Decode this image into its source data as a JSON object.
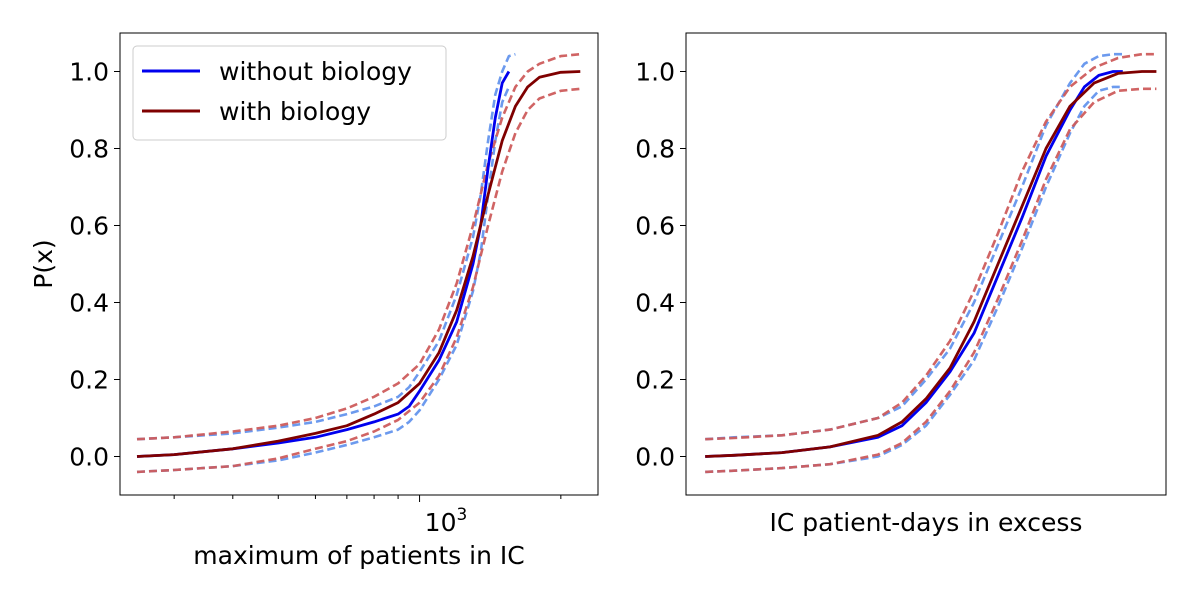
{
  "colors": {
    "without_biology": "#0000ee",
    "with_biology": "#7f0000",
    "ci_without": "#6495ed",
    "ci_with": "#cd5c5c"
  },
  "chart_data": [
    {
      "type": "line",
      "xlabel": "maximum of patients in IC",
      "ylabel": "P(x)",
      "xscale": "log",
      "xlim": [
        230,
        2400
      ],
      "ylim": [
        -0.1,
        1.1
      ],
      "yticks": [
        0.0,
        0.2,
        0.4,
        0.6,
        0.8,
        1.0
      ],
      "ytick_labels": [
        "0.0",
        "0.2",
        "0.4",
        "0.6",
        "0.8",
        "1.0"
      ],
      "xtick_major": 1000,
      "xtick_label_base": "10",
      "xtick_label_exp": "3",
      "grid": false,
      "legend": {
        "placement": "upper-left",
        "entries": [
          "without biology",
          "with biology"
        ]
      },
      "series": [
        {
          "name": "without biology",
          "style": "solid",
          "x": [
            250,
            300,
            400,
            500,
            600,
            700,
            800,
            900,
            950,
            1000,
            1100,
            1200,
            1300,
            1350,
            1400,
            1450,
            1500,
            1550
          ],
          "y": [
            0.0,
            0.005,
            0.02,
            0.035,
            0.05,
            0.07,
            0.09,
            0.11,
            0.13,
            0.17,
            0.25,
            0.35,
            0.5,
            0.6,
            0.75,
            0.88,
            0.97,
            1.0
          ]
        },
        {
          "name": "without biology (upper bound)",
          "style": "dashed",
          "x": [
            250,
            300,
            400,
            500,
            600,
            700,
            800,
            900,
            950,
            1000,
            1100,
            1200,
            1300,
            1350,
            1400,
            1450,
            1500,
            1550,
            1600
          ],
          "y": [
            0.045,
            0.05,
            0.06,
            0.075,
            0.09,
            0.11,
            0.13,
            0.155,
            0.18,
            0.22,
            0.3,
            0.42,
            0.57,
            0.68,
            0.82,
            0.94,
            1.0,
            1.04,
            1.045
          ]
        },
        {
          "name": "without biology (lower bound)",
          "style": "dashed",
          "x": [
            250,
            300,
            400,
            500,
            600,
            700,
            800,
            900,
            950,
            1000,
            1100,
            1200,
            1300,
            1350,
            1400,
            1450,
            1500,
            1550
          ],
          "y": [
            -0.04,
            -0.035,
            -0.025,
            -0.01,
            0.01,
            0.03,
            0.05,
            0.07,
            0.09,
            0.12,
            0.2,
            0.29,
            0.43,
            0.53,
            0.68,
            0.82,
            0.92,
            0.96
          ]
        },
        {
          "name": "with biology",
          "style": "solid",
          "x": [
            250,
            300,
            400,
            500,
            600,
            700,
            800,
            900,
            1000,
            1100,
            1200,
            1300,
            1400,
            1500,
            1600,
            1700,
            1800,
            2000,
            2200
          ],
          "y": [
            0.0,
            0.005,
            0.02,
            0.04,
            0.06,
            0.08,
            0.11,
            0.14,
            0.19,
            0.27,
            0.38,
            0.52,
            0.68,
            0.82,
            0.91,
            0.96,
            0.985,
            0.998,
            1.0
          ]
        },
        {
          "name": "with biology (upper bound)",
          "style": "dashed",
          "x": [
            250,
            300,
            400,
            500,
            600,
            700,
            800,
            900,
            1000,
            1100,
            1200,
            1300,
            1400,
            1500,
            1600,
            1700,
            1800,
            2000,
            2200
          ],
          "y": [
            0.045,
            0.05,
            0.065,
            0.08,
            0.1,
            0.125,
            0.155,
            0.19,
            0.24,
            0.33,
            0.45,
            0.6,
            0.76,
            0.88,
            0.96,
            1.0,
            1.02,
            1.04,
            1.045
          ]
        },
        {
          "name": "with biology (lower bound)",
          "style": "dashed",
          "x": [
            250,
            300,
            400,
            500,
            600,
            700,
            800,
            900,
            1000,
            1100,
            1200,
            1300,
            1400,
            1500,
            1600,
            1700,
            1800,
            2000,
            2200
          ],
          "y": [
            -0.04,
            -0.035,
            -0.025,
            -0.005,
            0.02,
            0.04,
            0.065,
            0.095,
            0.14,
            0.21,
            0.31,
            0.44,
            0.6,
            0.74,
            0.84,
            0.9,
            0.93,
            0.95,
            0.955
          ]
        }
      ]
    },
    {
      "type": "line",
      "xlabel": "IC patient-days in excess",
      "ylabel": "",
      "xlim": [
        0,
        10
      ],
      "ylim": [
        -0.1,
        1.1
      ],
      "yticks": [
        0.0,
        0.2,
        0.4,
        0.6,
        0.8,
        1.0
      ],
      "ytick_labels": [
        "0.0",
        "0.2",
        "0.4",
        "0.6",
        "0.8",
        "1.0"
      ],
      "grid": false,
      "series": [
        {
          "name": "without biology",
          "style": "solid",
          "x": [
            0.4,
            1,
            2,
            3,
            4,
            4.5,
            5,
            5.5,
            6,
            6.5,
            7,
            7.5,
            8,
            8.3,
            8.6,
            8.9,
            9.1
          ],
          "y": [
            0.0,
            0.003,
            0.01,
            0.025,
            0.05,
            0.08,
            0.14,
            0.22,
            0.32,
            0.47,
            0.62,
            0.78,
            0.9,
            0.96,
            0.99,
            1.0,
            1.0
          ]
        },
        {
          "name": "without biology (upper bound)",
          "style": "dashed",
          "x": [
            0.4,
            1,
            2,
            3,
            4,
            4.5,
            5,
            5.5,
            6,
            6.5,
            7,
            7.5,
            8,
            8.3,
            8.6,
            8.9,
            9.1
          ],
          "y": [
            0.045,
            0.05,
            0.055,
            0.07,
            0.1,
            0.13,
            0.2,
            0.28,
            0.4,
            0.55,
            0.7,
            0.86,
            0.97,
            1.02,
            1.04,
            1.045,
            1.045
          ]
        },
        {
          "name": "without biology (lower bound)",
          "style": "dashed",
          "x": [
            0.4,
            1,
            2,
            3,
            4,
            4.5,
            5,
            5.5,
            6,
            6.5,
            7,
            7.5,
            8,
            8.3,
            8.6,
            8.9,
            9.1
          ],
          "y": [
            -0.04,
            -0.037,
            -0.03,
            -0.02,
            0.0,
            0.03,
            0.08,
            0.16,
            0.25,
            0.39,
            0.54,
            0.7,
            0.84,
            0.91,
            0.95,
            0.96,
            0.96
          ]
        },
        {
          "name": "with biology",
          "style": "solid",
          "x": [
            0.4,
            1,
            2,
            3,
            4,
            4.5,
            5,
            5.5,
            6,
            6.5,
            7,
            7.5,
            8,
            8.5,
            9,
            9.5,
            9.8
          ],
          "y": [
            0.0,
            0.003,
            0.01,
            0.025,
            0.055,
            0.09,
            0.15,
            0.23,
            0.35,
            0.5,
            0.65,
            0.8,
            0.91,
            0.97,
            0.995,
            1.0,
            1.0
          ]
        },
        {
          "name": "with biology (upper bound)",
          "style": "dashed",
          "x": [
            0.4,
            1,
            2,
            3,
            4,
            4.5,
            5,
            5.5,
            6,
            6.5,
            7,
            7.5,
            8,
            8.5,
            9,
            9.5,
            9.8
          ],
          "y": [
            0.045,
            0.048,
            0.055,
            0.07,
            0.1,
            0.14,
            0.21,
            0.3,
            0.43,
            0.58,
            0.74,
            0.87,
            0.96,
            1.01,
            1.035,
            1.045,
            1.045
          ]
        },
        {
          "name": "with biology (lower bound)",
          "style": "dashed",
          "x": [
            0.4,
            1,
            2,
            3,
            4,
            4.5,
            5,
            5.5,
            6,
            6.5,
            7,
            7.5,
            8,
            8.5,
            9,
            9.5,
            9.8
          ],
          "y": [
            -0.04,
            -0.037,
            -0.03,
            -0.02,
            0.005,
            0.035,
            0.09,
            0.17,
            0.27,
            0.41,
            0.56,
            0.72,
            0.85,
            0.92,
            0.95,
            0.955,
            0.955
          ]
        }
      ]
    }
  ]
}
